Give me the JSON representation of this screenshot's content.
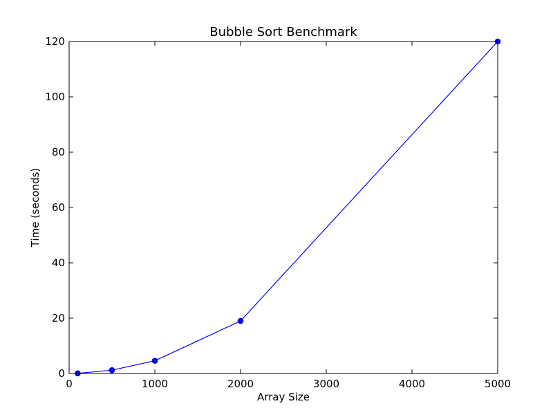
{
  "chart_data": {
    "type": "line",
    "title": "Bubble Sort Benchmark",
    "xlabel": "Array Size",
    "ylabel": "Time (seconds)",
    "xlim": [
      0,
      5000
    ],
    "ylim": [
      0,
      120
    ],
    "xticks": [
      0,
      1000,
      2000,
      3000,
      4000,
      5000
    ],
    "yticks": [
      0,
      20,
      40,
      60,
      80,
      100,
      120
    ],
    "grid": false,
    "series": [
      {
        "color": "#0000ff",
        "marker": "circle",
        "x": [
          100,
          500,
          1000,
          2000,
          5000
        ],
        "y": [
          0.05,
          1.2,
          4.6,
          19.0,
          120.0
        ]
      }
    ]
  }
}
